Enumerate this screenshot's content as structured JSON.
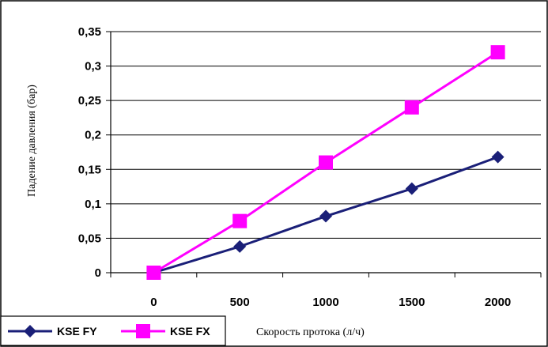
{
  "chart_data": {
    "type": "line",
    "categories": [
      "0",
      "500",
      "1000",
      "1500",
      "2000"
    ],
    "series": [
      {
        "name": "KSE FY",
        "values": [
          0,
          0.038,
          0.082,
          0.122,
          0.168
        ],
        "color": "#1a1f78",
        "marker": "diamond"
      },
      {
        "name": "KSE FX",
        "values": [
          0,
          0.075,
          0.16,
          0.24,
          0.32
        ],
        "color": "#ff00ff",
        "marker": "square"
      }
    ],
    "xlabel": "Скорость протока (л/ч)",
    "ylabel": "Падение давления (бар)",
    "ylim": [
      0,
      0.35
    ],
    "yticks": [
      "0",
      "0,05",
      "0,1",
      "0,15",
      "0,2",
      "0,25",
      "0,3",
      "0,35"
    ],
    "grid": true,
    "legend_position": "bottom-left"
  }
}
